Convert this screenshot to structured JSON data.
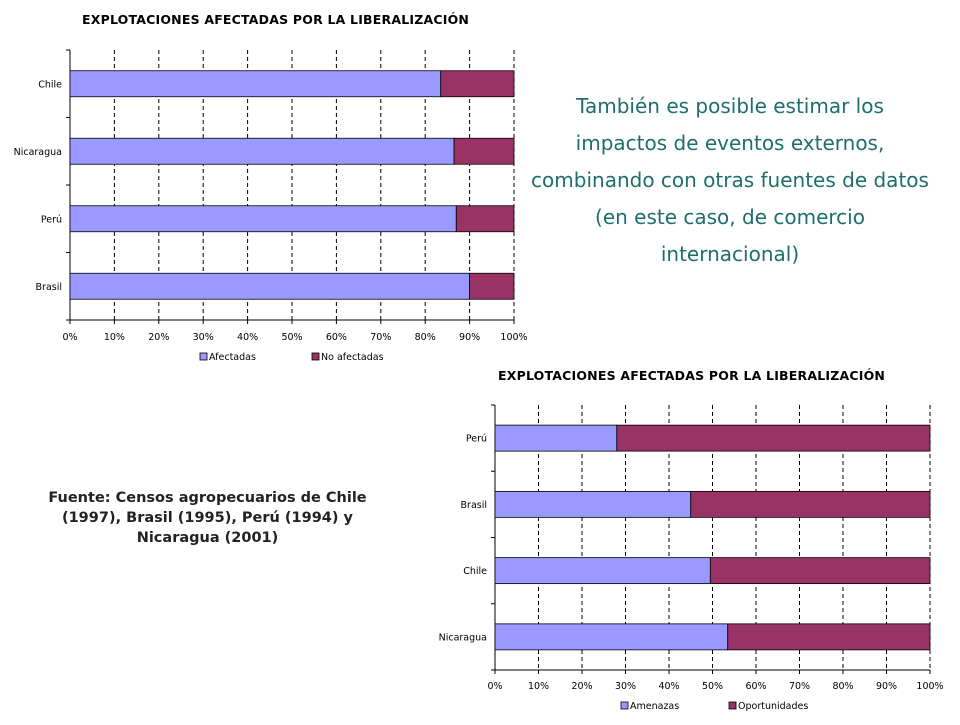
{
  "description": "También es posible estimar los impactos de eventos externos, combinando con otras fuentes de datos (en este caso, de comercio internacional)",
  "source": "Fuente: Censos agropecuarios de Chile (1997), Brasil (1995), Perú (1994) y Nicaragua (2001)",
  "colors": {
    "primary": "#9999ff",
    "secondary": "#993366",
    "text": "#1f6e6e"
  },
  "chart_data": [
    {
      "type": "bar",
      "orientation": "horizontal",
      "stacked": true,
      "title": "EXPLOTACIONES AFECTADAS POR LA LIBERALIZACIÓN",
      "categories": [
        "Chile",
        "Nicaragua",
        "Perú",
        "Brasil"
      ],
      "series": [
        {
          "name": "Afectadas",
          "color": "#9999ff",
          "values": [
            83.5,
            86.5,
            87,
            90
          ]
        },
        {
          "name": "No afectadas",
          "color": "#993366",
          "values": [
            16.5,
            13.5,
            13,
            10
          ]
        }
      ],
      "xlim": [
        0,
        100
      ],
      "xticks": [
        "0%",
        "10%",
        "20%",
        "30%",
        "40%",
        "50%",
        "60%",
        "70%",
        "80%",
        "90%",
        "100%"
      ],
      "grid": "vertical dashed",
      "legend": "bottom"
    },
    {
      "type": "bar",
      "orientation": "horizontal",
      "stacked": true,
      "title": "EXPLOTACIONES AFECTADAS POR LA LIBERALIZACIÓN",
      "categories": [
        "Perú",
        "Brasil",
        "Chile",
        "Nicaragua"
      ],
      "series": [
        {
          "name": "Amenazas",
          "color": "#9999ff",
          "values": [
            28,
            45,
            49.5,
            53.5
          ]
        },
        {
          "name": "Oportunidades",
          "color": "#993366",
          "values": [
            72,
            55,
            50.5,
            46.5
          ]
        }
      ],
      "xlim": [
        0,
        100
      ],
      "xticks": [
        "0%",
        "10%",
        "20%",
        "30%",
        "40%",
        "50%",
        "60%",
        "70%",
        "80%",
        "90%",
        "100%"
      ],
      "grid": "vertical dashed",
      "legend": "bottom"
    }
  ]
}
